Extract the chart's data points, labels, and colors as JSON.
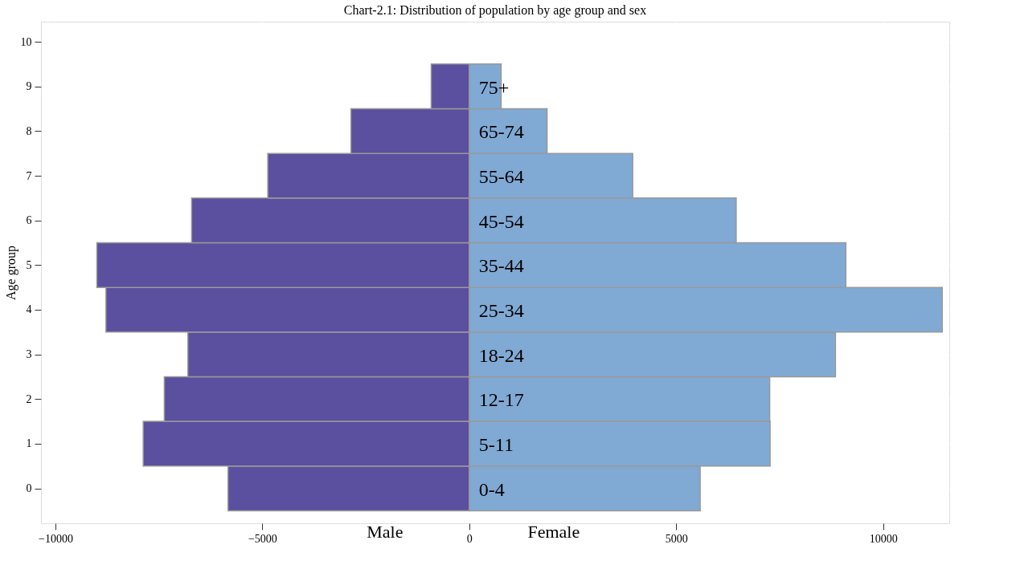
{
  "chart_data": {
    "type": "bar",
    "orientation": "horizontal",
    "title": "Chart-2.1: Distribution of population by age group and sex",
    "ylabel": "Age group",
    "x": [
      0,
      1,
      2,
      3,
      4,
      5,
      6,
      7,
      8,
      9
    ],
    "series": [
      {
        "name": "Male",
        "color": "#5b4f9f",
        "values": [
          -5830,
          -7880,
          -7370,
          -6800,
          -8780,
          -9000,
          -6710,
          -4870,
          -2860,
          -920
        ]
      },
      {
        "name": "Female",
        "color": "#80a9d4",
        "values": [
          5580,
          7270,
          7260,
          8850,
          11430,
          9100,
          6450,
          3950,
          1880,
          770
        ]
      }
    ],
    "xlim": [
      -10350,
      11600
    ],
    "xticks": [
      -10000,
      -5000,
      0,
      5000,
      10000
    ],
    "ylim": [
      -0.78,
      10.45
    ],
    "yticks": [
      0,
      1,
      2,
      3,
      4,
      5,
      6,
      7,
      8,
      9,
      10
    ],
    "grid": true,
    "stacked": true,
    "annotations": [
      "0-4",
      "5-11",
      "12-17",
      "18-24",
      "25-34",
      "35-44",
      "45-54",
      "55-64",
      "65-74",
      "75+"
    ]
  }
}
